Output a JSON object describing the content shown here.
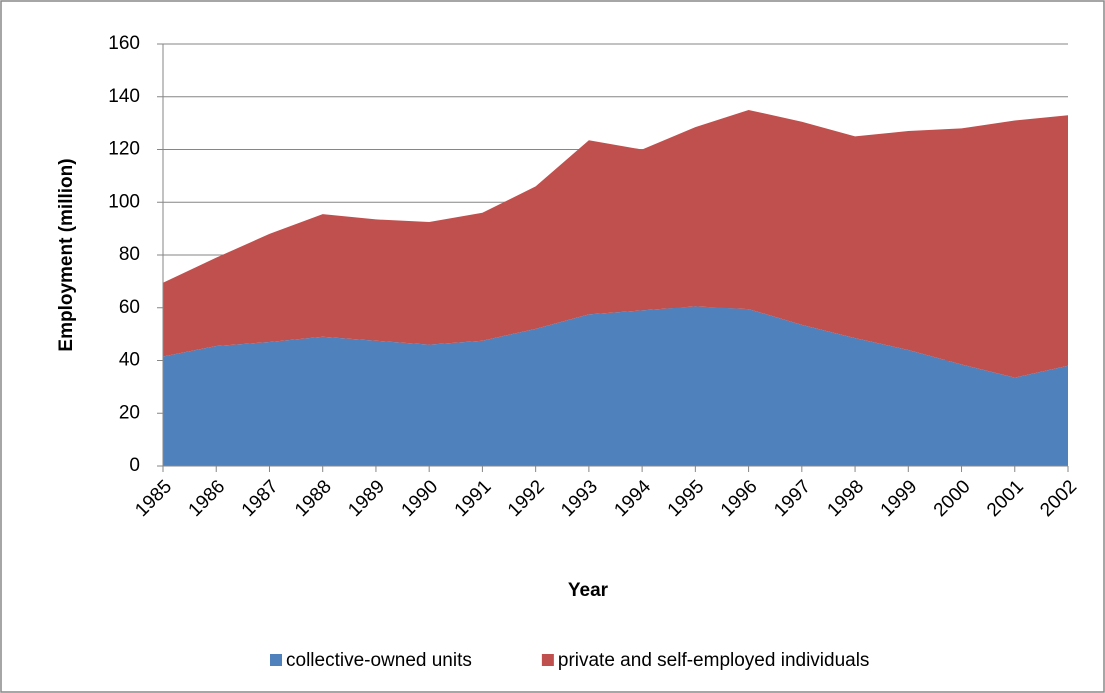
{
  "chart_data": {
    "type": "stacked-area",
    "categories": [
      "1985",
      "1986",
      "1987",
      "1988",
      "1989",
      "1990",
      "1991",
      "1992",
      "1993",
      "1994",
      "1995",
      "1996",
      "1997",
      "1998",
      "1999",
      "2000",
      "2001",
      "2002"
    ],
    "series": [
      {
        "name": "collective-owned units",
        "color": "#4f81bd",
        "values": [
          41.5,
          45.5,
          47,
          49,
          47.5,
          46,
          47.5,
          52,
          57.5,
          59,
          60.5,
          59.5,
          53.5,
          48.5,
          44,
          38.5,
          33.5,
          38
        ]
      },
      {
        "name": "private and self-employed individuals",
        "color": "#c0504d",
        "values": [
          28,
          33.5,
          41,
          46.5,
          46,
          46.5,
          48.5,
          54,
          66,
          61,
          68,
          75.5,
          77,
          76.5,
          83,
          89.5,
          97.5,
          95
        ]
      }
    ],
    "x_label": "Year",
    "y_label": "Employment (million)",
    "ylim": [
      0,
      160
    ],
    "yticks": [
      0,
      20,
      40,
      60,
      80,
      100,
      120,
      140,
      160
    ],
    "grid": true,
    "legend": "bottom"
  }
}
